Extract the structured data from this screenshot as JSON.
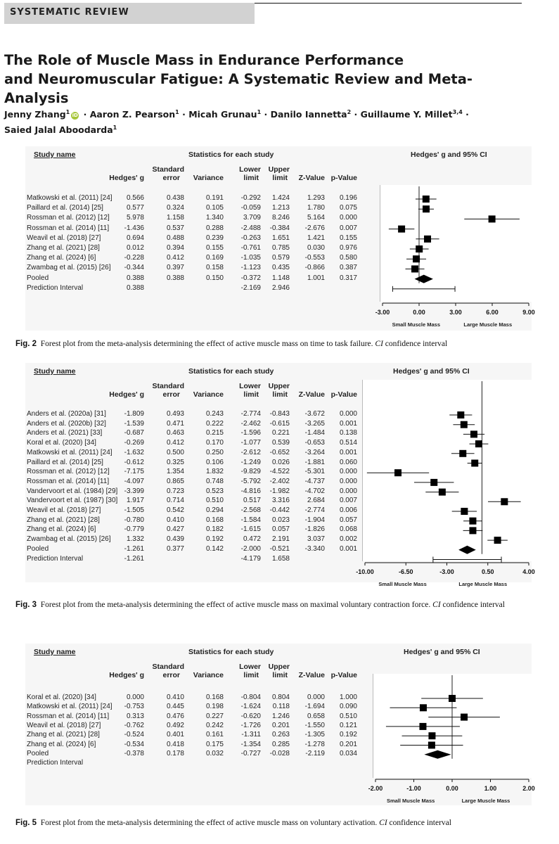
{
  "header": {
    "section_label": "SYSTEMATIC REVIEW"
  },
  "article": {
    "title_line1": "The Role of Muscle Mass in Endurance Performance",
    "title_line2": "and Neuromuscular Fatigue: A Systematic Review and Meta-Analysis",
    "authors": [
      {
        "name": "Jenny Zhang",
        "sup": "1"
      },
      {
        "name": "Aaron Z. Pearson",
        "sup": "1"
      },
      {
        "name": "Micah Grunau",
        "sup": "1"
      },
      {
        "name": "Danilo Iannetta",
        "sup": "2"
      },
      {
        "name": "Guillaume Y. Millet",
        "sup": "3,4"
      },
      {
        "name": "Saied Jalal Aboodarda",
        "sup": "1"
      }
    ],
    "orcid_icon": "orcid-icon"
  },
  "column_headers": {
    "study_name": "Study name",
    "stats_group": "Statistics for each study",
    "plot_group": "Hedges' g and 95% CI",
    "hedges": "Hedges' g",
    "se_line1": "Standard",
    "se_line2": "error",
    "variance": "Variance",
    "lower_line1": "Lower",
    "lower_line2": "limit",
    "upper_line1": "Upper",
    "upper_line2": "limit",
    "z": "Z-Value",
    "p": "p-Value"
  },
  "figures": [
    {
      "label": "Fig. 2",
      "caption_text": "Forest plot from the meta-analysis determining the effect of active muscle mass on time to task failure.",
      "caption_ci": "CI",
      "caption_tail": "confidence interval",
      "rows": [
        {
          "study": "Matkowski et al. (2011) [24]",
          "g": "0.566",
          "se": "0.438",
          "var": "0.191",
          "lo": "-0.292",
          "hi": "1.424",
          "z": "1.293",
          "p": "0.196"
        },
        {
          "study": "Paillard et al. (2014) [25]",
          "g": "0.577",
          "se": "0.324",
          "var": "0.105",
          "lo": "-0.059",
          "hi": "1.213",
          "z": "1.780",
          "p": "0.075"
        },
        {
          "study": "Rossman et al. (2012) [12]",
          "g": "5.978",
          "se": "1.158",
          "var": "1.340",
          "lo": "3.709",
          "hi": "8.246",
          "z": "5.164",
          "p": "0.000"
        },
        {
          "study": "Rossman et al. (2014) [11]",
          "g": "-1.436",
          "se": "0.537",
          "var": "0.288",
          "lo": "-2.488",
          "hi": "-0.384",
          "z": "-2.676",
          "p": "0.007"
        },
        {
          "study": "Weavil et al. (2018) [27]",
          "g": "0.694",
          "se": "0.488",
          "var": "0.239",
          "lo": "-0.263",
          "hi": "1.651",
          "z": "1.421",
          "p": "0.155"
        },
        {
          "study": "Zhang et al. (2021) [28]",
          "g": "0.012",
          "se": "0.394",
          "var": "0.155",
          "lo": "-0.761",
          "hi": "0.785",
          "z": "0.030",
          "p": "0.976"
        },
        {
          "study": "Zhang et al. (2024) [6]",
          "g": "-0.228",
          "se": "0.412",
          "var": "0.169",
          "lo": "-1.035",
          "hi": "0.579",
          "z": "-0.553",
          "p": "0.580"
        },
        {
          "study": "Zwambag et al. (2015) [26]",
          "g": "-0.344",
          "se": "0.397",
          "var": "0.158",
          "lo": "-1.123",
          "hi": "0.435",
          "z": "-0.866",
          "p": "0.387"
        }
      ],
      "pooled": {
        "study": "Pooled",
        "g": "0.388",
        "se": "0.388",
        "var": "0.150",
        "lo": "-0.372",
        "hi": "1.148",
        "z": "1.001",
        "p": "0.317"
      },
      "prediction": {
        "study": "Prediction Interval",
        "g": "0.388",
        "lo": "-2.169",
        "hi": "2.946"
      },
      "axis": {
        "ticks": [
          "-3.00",
          "0.00",
          "3.00",
          "6.00",
          "9.00"
        ],
        "left_label": "Small Muscle Mass",
        "right_label": "Large Muscle Mass"
      }
    },
    {
      "label": "Fig. 3",
      "caption_text": "Forest plot from the meta-analysis determining the effect of active muscle mass on maximal voluntary contraction force.",
      "caption_ci": "CI",
      "caption_tail": "confidence interval",
      "rows": [
        {
          "study": "Anders et al. (2020a) [31]",
          "g": "-1.809",
          "se": "0.493",
          "var": "0.243",
          "lo": "-2.774",
          "hi": "-0.843",
          "z": "-3.672",
          "p": "0.000"
        },
        {
          "study": "Anders et al. (2020b) [32]",
          "g": "-1.539",
          "se": "0.471",
          "var": "0.222",
          "lo": "-2.462",
          "hi": "-0.615",
          "z": "-3.265",
          "p": "0.001"
        },
        {
          "study": "Anders et al. (2021) [33]",
          "g": "-0.687",
          "se": "0.463",
          "var": "0.215",
          "lo": "-1.596",
          "hi": "0.221",
          "z": "-1.484",
          "p": "0.138"
        },
        {
          "study": "Koral et al. (2020) [34]",
          "g": "-0.269",
          "se": "0.412",
          "var": "0.170",
          "lo": "-1.077",
          "hi": "0.539",
          "z": "-0.653",
          "p": "0.514"
        },
        {
          "study": "Matkowski et al. (2011) [24]",
          "g": "-1.632",
          "se": "0.500",
          "var": "0.250",
          "lo": "-2.612",
          "hi": "-0.652",
          "z": "-3.264",
          "p": "0.001"
        },
        {
          "study": "Paillard et al. (2014) [25]",
          "g": "-0.612",
          "se": "0.325",
          "var": "0.106",
          "lo": "-1.249",
          "hi": "0.026",
          "z": "-1.881",
          "p": "0.060"
        },
        {
          "study": "Rossman et al. (2012) [12]",
          "g": "-7.175",
          "se": "1.354",
          "var": "1.832",
          "lo": "-9.829",
          "hi": "-4.522",
          "z": "-5.301",
          "p": "0.000"
        },
        {
          "study": "Rossman et al. (2014) [11]",
          "g": "-4.097",
          "se": "0.865",
          "var": "0.748",
          "lo": "-5.792",
          "hi": "-2.402",
          "z": "-4.737",
          "p": "0.000"
        },
        {
          "study": "Vandervoort et al. (1984) [29]",
          "g": "-3.399",
          "se": "0.723",
          "var": "0.523",
          "lo": "-4.816",
          "hi": "-1.982",
          "z": "-4.702",
          "p": "0.000"
        },
        {
          "study": "Vandervoort et al. (1987) [30]",
          "g": "1.917",
          "se": "0.714",
          "var": "0.510",
          "lo": "0.517",
          "hi": "3.316",
          "z": "2.684",
          "p": "0.007"
        },
        {
          "study": "Weavil et al. (2018) [27]",
          "g": "-1.505",
          "se": "0.542",
          "var": "0.294",
          "lo": "-2.568",
          "hi": "-0.442",
          "z": "-2.774",
          "p": "0.006"
        },
        {
          "study": "Zhang et al. (2021) [28]",
          "g": "-0.780",
          "se": "0.410",
          "var": "0.168",
          "lo": "-1.584",
          "hi": "0.023",
          "z": "-1.904",
          "p": "0.057"
        },
        {
          "study": "Zhang et al. (2024) [6]",
          "g": "-0.779",
          "se": "0.427",
          "var": "0.182",
          "lo": "-1.615",
          "hi": "0.057",
          "z": "-1.826",
          "p": "0.068"
        },
        {
          "study": "Zwambag et al. (2015) [26]",
          "g": "1.332",
          "se": "0.439",
          "var": "0.192",
          "lo": "0.472",
          "hi": "2.191",
          "z": "3.037",
          "p": "0.002"
        }
      ],
      "pooled": {
        "study": "Pooled",
        "g": "-1.261",
        "se": "0.377",
        "var": "0.142",
        "lo": "-2.000",
        "hi": "-0.521",
        "z": "-3.340",
        "p": "0.001"
      },
      "prediction": {
        "study": "Prediction Interval",
        "g": "-1.261",
        "lo": "-4.179",
        "hi": "1.658"
      },
      "axis": {
        "ticks": [
          "-10.00",
          "-6.50",
          "-3.00",
          "0.50",
          "4.00"
        ],
        "left_label": "Small Muscle Mass",
        "right_label": "Large Muscle Mass"
      }
    },
    {
      "label": "Fig. 5",
      "caption_text": "Forest plot from the meta-analysis determining the effect of active muscle mass on voluntary activation.",
      "caption_ci": "CI",
      "caption_tail": "confidence interval",
      "rows": [
        {
          "study": "Koral et al. (2020) [34]",
          "g": "0.000",
          "se": "0.410",
          "var": "0.168",
          "lo": "-0.804",
          "hi": "0.804",
          "z": "0.000",
          "p": "1.000"
        },
        {
          "study": "Matkowski et al. (2011) [24]",
          "g": "-0.753",
          "se": "0.445",
          "var": "0.198",
          "lo": "-1.624",
          "hi": "0.118",
          "z": "-1.694",
          "p": "0.090"
        },
        {
          "study": "Rossman et al. (2014) [11]",
          "g": "0.313",
          "se": "0.476",
          "var": "0.227",
          "lo": "-0.620",
          "hi": "1.246",
          "z": "0.658",
          "p": "0.510"
        },
        {
          "study": "Weavil et al. (2018) [27]",
          "g": "-0.762",
          "se": "0.492",
          "var": "0.242",
          "lo": "-1.726",
          "hi": "0.201",
          "z": "-1.550",
          "p": "0.121"
        },
        {
          "study": "Zhang et al. (2021) [28]",
          "g": "-0.524",
          "se": "0.401",
          "var": "0.161",
          "lo": "-1.311",
          "hi": "0.263",
          "z": "-1.305",
          "p": "0.192"
        },
        {
          "study": "Zhang et al. (2024) [6]",
          "g": "-0.534",
          "se": "0.418",
          "var": "0.175",
          "lo": "-1.354",
          "hi": "0.285",
          "z": "-1.278",
          "p": "0.201"
        }
      ],
      "pooled": {
        "study": "Pooled",
        "g": "-0.378",
        "se": "0.178",
        "var": "0.032",
        "lo": "-0.727",
        "hi": "-0.028",
        "z": "-2.119",
        "p": "0.034"
      },
      "prediction": {
        "study": "Prediction Interval",
        "g": "",
        "lo": "",
        "hi": ""
      },
      "axis": {
        "ticks": [
          "-2.00",
          "-1.00",
          "0.00",
          "1.00",
          "2.00"
        ],
        "left_label": "Small Muscle Mass",
        "right_label": "Large Muscle Mass"
      }
    }
  ],
  "chart_data": [
    {
      "type": "forest",
      "xlim": [
        -3,
        9
      ],
      "xticks": [
        -3,
        0,
        3,
        6,
        9
      ],
      "studies": [
        {
          "g": 0.566,
          "lo": -0.292,
          "hi": 1.424,
          "w": 0.191
        },
        {
          "g": 0.577,
          "lo": -0.059,
          "hi": 1.213,
          "w": 0.105
        },
        {
          "g": 5.978,
          "lo": 3.709,
          "hi": 8.246,
          "w": 1.34
        },
        {
          "g": -1.436,
          "lo": -2.488,
          "hi": -0.384,
          "w": 0.288
        },
        {
          "g": 0.694,
          "lo": -0.263,
          "hi": 1.651,
          "w": 0.239
        },
        {
          "g": 0.012,
          "lo": -0.761,
          "hi": 0.785,
          "w": 0.155
        },
        {
          "g": -0.228,
          "lo": -1.035,
          "hi": 0.579,
          "w": 0.169
        },
        {
          "g": -0.344,
          "lo": -1.123,
          "hi": 0.435,
          "w": 0.158
        }
      ],
      "pooled": {
        "g": 0.388,
        "lo": -0.372,
        "hi": 1.148
      },
      "prediction": {
        "lo": -2.169,
        "hi": 2.946
      }
    },
    {
      "type": "forest",
      "xlim": [
        -10,
        4
      ],
      "xticks": [
        -10,
        -6.5,
        -3,
        0.5,
        4
      ],
      "studies": [
        {
          "g": -1.809,
          "lo": -2.774,
          "hi": -0.843
        },
        {
          "g": -1.539,
          "lo": -2.462,
          "hi": -0.615
        },
        {
          "g": -0.687,
          "lo": -1.596,
          "hi": 0.221
        },
        {
          "g": -0.269,
          "lo": -1.077,
          "hi": 0.539
        },
        {
          "g": -1.632,
          "lo": -2.612,
          "hi": -0.652
        },
        {
          "g": -0.612,
          "lo": -1.249,
          "hi": 0.026
        },
        {
          "g": -7.175,
          "lo": -9.829,
          "hi": -4.522
        },
        {
          "g": -4.097,
          "lo": -5.792,
          "hi": -2.402
        },
        {
          "g": -3.399,
          "lo": -4.816,
          "hi": -1.982
        },
        {
          "g": 1.917,
          "lo": 0.517,
          "hi": 3.316
        },
        {
          "g": -1.505,
          "lo": -2.568,
          "hi": -0.442
        },
        {
          "g": -0.78,
          "lo": -1.584,
          "hi": 0.023
        },
        {
          "g": -0.779,
          "lo": -1.615,
          "hi": 0.057
        },
        {
          "g": 1.332,
          "lo": 0.472,
          "hi": 2.191
        }
      ],
      "pooled": {
        "g": -1.261,
        "lo": -2.0,
        "hi": -0.521
      },
      "prediction": {
        "lo": -4.179,
        "hi": 1.658
      }
    },
    {
      "type": "forest",
      "xlim": [
        -2,
        2
      ],
      "xticks": [
        -2,
        -1,
        0,
        1,
        2
      ],
      "studies": [
        {
          "g": 0.0,
          "lo": -0.804,
          "hi": 0.804
        },
        {
          "g": -0.753,
          "lo": -1.624,
          "hi": 0.118
        },
        {
          "g": 0.313,
          "lo": -0.62,
          "hi": 1.246
        },
        {
          "g": -0.762,
          "lo": -1.726,
          "hi": 0.201
        },
        {
          "g": -0.524,
          "lo": -1.311,
          "hi": 0.263
        },
        {
          "g": -0.534,
          "lo": -1.354,
          "hi": 0.285
        }
      ],
      "pooled": {
        "g": -0.378,
        "lo": -0.727,
        "hi": -0.028
      },
      "prediction": null
    }
  ]
}
